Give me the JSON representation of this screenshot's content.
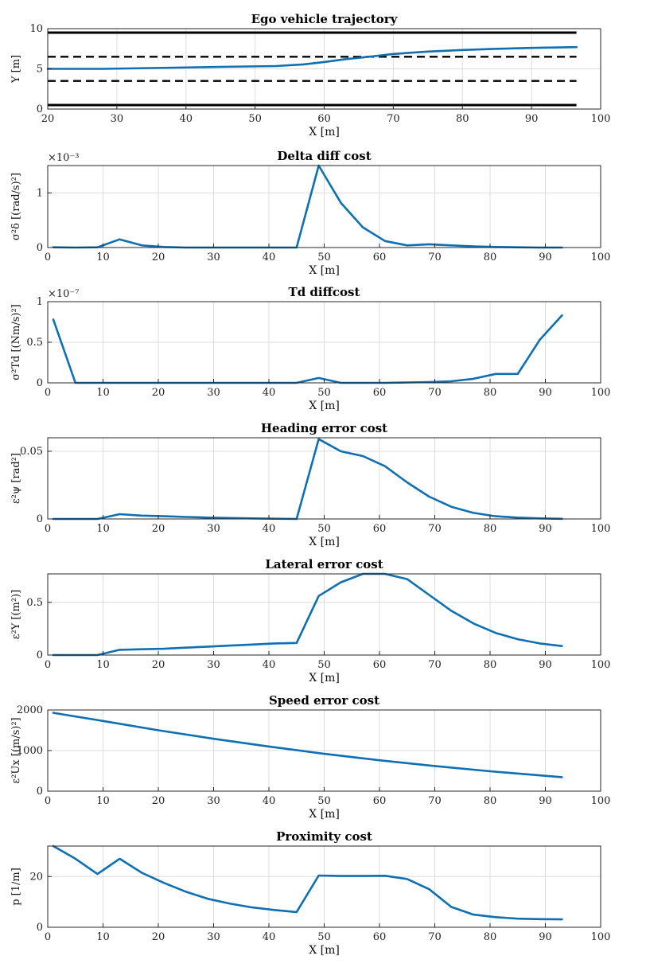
{
  "chart_data": [
    {
      "type": "line",
      "title": "Ego vehicle trajectory",
      "xlabel": "X [m]",
      "ylabel": "Y [m]",
      "xlim": [
        20,
        100
      ],
      "ylim": [
        0,
        10
      ],
      "xticks": [
        20,
        30,
        40,
        50,
        60,
        70,
        80,
        90,
        100
      ],
      "yticks": [
        0,
        5,
        10
      ],
      "ytick_labels": [
        "0",
        "5",
        "10"
      ],
      "grid": true,
      "exponent": "",
      "lane_lines": [
        {
          "style": "solid",
          "y": 9.5
        },
        {
          "style": "dashed",
          "y": 6.5
        },
        {
          "style": "dashed",
          "y": 3.5
        },
        {
          "style": "solid",
          "y": 0.5
        }
      ],
      "lane_x_range": [
        20,
        96.5
      ],
      "series": [
        {
          "name": "trajectory",
          "x": [
            20,
            28,
            35,
            45,
            53,
            57,
            60,
            63,
            67,
            70,
            75,
            80,
            85,
            90,
            96.5
          ],
          "y": [
            5.0,
            5.0,
            5.1,
            5.25,
            5.35,
            5.55,
            5.85,
            6.2,
            6.55,
            6.85,
            7.15,
            7.35,
            7.5,
            7.6,
            7.7
          ]
        }
      ]
    },
    {
      "type": "line",
      "title": "Delta diff cost",
      "xlabel": "X [m]",
      "ylabel": "σ²δ [(rad/s)²]",
      "xlim": [
        0,
        100
      ],
      "ylim": [
        0,
        1.5
      ],
      "xticks": [
        0,
        10,
        20,
        30,
        40,
        50,
        60,
        70,
        80,
        90,
        100
      ],
      "yticks": [
        0,
        1
      ],
      "ytick_labels": [
        "0",
        "1"
      ],
      "grid": true,
      "exponent": "×10⁻³",
      "series": [
        {
          "name": "delta diff cost",
          "x": [
            1,
            5,
            9,
            13,
            17,
            21,
            25,
            29,
            33,
            37,
            41,
            45,
            49,
            53,
            57,
            61,
            65,
            69,
            73,
            77,
            81,
            85,
            89,
            93
          ],
          "y": [
            0.005,
            0.0,
            0.005,
            0.15,
            0.04,
            0.01,
            0.0,
            0.0,
            0.0,
            0.0,
            0.0,
            0.0,
            1.5,
            0.82,
            0.37,
            0.12,
            0.04,
            0.06,
            0.04,
            0.02,
            0.01,
            0.005,
            0.0,
            0.0
          ]
        }
      ]
    },
    {
      "type": "line",
      "title": "Td diffcost",
      "xlabel": "X [m]",
      "ylabel": "σ²Td [(Nm/s)²]",
      "xlim": [
        0,
        100
      ],
      "ylim": [
        0,
        1
      ],
      "xticks": [
        0,
        10,
        20,
        30,
        40,
        50,
        60,
        70,
        80,
        90,
        100
      ],
      "yticks": [
        0,
        0.5,
        1
      ],
      "ytick_labels": [
        "0",
        "0.5",
        "1"
      ],
      "grid": true,
      "exponent": "×10⁻⁷",
      "series": [
        {
          "name": "td diff cost",
          "x": [
            1,
            5,
            9,
            13,
            17,
            21,
            25,
            29,
            33,
            37,
            41,
            45,
            49,
            53,
            57,
            61,
            65,
            69,
            73,
            77,
            81,
            85,
            89,
            93
          ],
          "y": [
            0.78,
            0.0,
            0.0,
            0.0,
            0.0,
            0.0,
            0.0,
            0.0,
            0.0,
            0.0,
            0.0,
            0.0,
            0.06,
            0.0,
            0.0,
            0.0,
            0.005,
            0.01,
            0.02,
            0.05,
            0.11,
            0.11,
            0.53,
            0.83
          ]
        }
      ]
    },
    {
      "type": "line",
      "title": "Heading error cost",
      "xlabel": "X [m]",
      "ylabel": "ε²ψ [rad²]",
      "xlim": [
        0,
        100
      ],
      "ylim": [
        0,
        0.06
      ],
      "xticks": [
        0,
        10,
        20,
        30,
        40,
        50,
        60,
        70,
        80,
        90,
        100
      ],
      "yticks": [
        0,
        0.05
      ],
      "ytick_labels": [
        "0",
        "0.05"
      ],
      "grid": true,
      "exponent": "",
      "series": [
        {
          "name": "heading error cost",
          "x": [
            1,
            5,
            9,
            13,
            17,
            21,
            25,
            29,
            33,
            37,
            41,
            45,
            49,
            53,
            57,
            61,
            65,
            69,
            73,
            77,
            81,
            85,
            89,
            93
          ],
          "y": [
            0.0,
            0.0,
            0.0,
            0.0035,
            0.0025,
            0.002,
            0.0015,
            0.001,
            0.0007,
            0.0004,
            0.0002,
            0.0,
            0.059,
            0.05,
            0.0465,
            0.039,
            0.027,
            0.0165,
            0.009,
            0.0045,
            0.002,
            0.001,
            0.0004,
            0.0001
          ]
        }
      ]
    },
    {
      "type": "line",
      "title": "Lateral error cost",
      "xlabel": "X [m]",
      "ylabel": "ε²Y [(m²)]",
      "xlim": [
        0,
        100
      ],
      "ylim": [
        0,
        0.77
      ],
      "xticks": [
        0,
        10,
        20,
        30,
        40,
        50,
        60,
        70,
        80,
        90,
        100
      ],
      "yticks": [
        0,
        0.5
      ],
      "ytick_labels": [
        "0",
        "0.5"
      ],
      "grid": true,
      "exponent": "",
      "series": [
        {
          "name": "lateral error cost",
          "x": [
            1,
            5,
            9,
            13,
            17,
            21,
            25,
            29,
            33,
            37,
            41,
            45,
            49,
            53,
            57,
            61,
            65,
            69,
            73,
            77,
            81,
            85,
            89,
            93
          ],
          "y": [
            0.0,
            0.0,
            0.0,
            0.05,
            0.055,
            0.06,
            0.07,
            0.08,
            0.09,
            0.1,
            0.11,
            0.115,
            0.56,
            0.69,
            0.77,
            0.77,
            0.72,
            0.57,
            0.42,
            0.3,
            0.21,
            0.15,
            0.11,
            0.085
          ]
        }
      ]
    },
    {
      "type": "line",
      "title": "Speed error cost",
      "xlabel": "X [m]",
      "ylabel": "ε²Ux [(m/s)²]",
      "xlim": [
        0,
        100
      ],
      "ylim": [
        0,
        2000
      ],
      "xticks": [
        0,
        10,
        20,
        30,
        40,
        50,
        60,
        70,
        80,
        90,
        100
      ],
      "yticks": [
        0,
        1000,
        2000
      ],
      "ytick_labels": [
        "0",
        "1000",
        "2000"
      ],
      "grid": true,
      "exponent": "",
      "series": [
        {
          "name": "speed error cost",
          "x": [
            1,
            10,
            20,
            30,
            40,
            50,
            60,
            70,
            80,
            93
          ],
          "y": [
            1930,
            1730,
            1500,
            1290,
            1100,
            920,
            760,
            620,
            490,
            345
          ]
        }
      ]
    },
    {
      "type": "line",
      "title": "Proximity cost",
      "xlabel": "X [m]",
      "ylabel": "p [1/m]",
      "xlim": [
        0,
        100
      ],
      "ylim": [
        0,
        32
      ],
      "xticks": [
        0,
        10,
        20,
        30,
        40,
        50,
        60,
        70,
        80,
        90,
        100
      ],
      "yticks": [
        0,
        20
      ],
      "ytick_labels": [
        "0",
        "20"
      ],
      "grid": true,
      "exponent": "",
      "series": [
        {
          "name": "proximity cost",
          "x": [
            1,
            5,
            9,
            13,
            17,
            21,
            25,
            29,
            33,
            37,
            41,
            45,
            49,
            53,
            57,
            61,
            65,
            69,
            73,
            77,
            81,
            85,
            89,
            93
          ],
          "y": [
            32,
            27,
            21,
            27,
            21.5,
            17.5,
            14,
            11.2,
            9.3,
            7.8,
            6.8,
            6.0,
            20.4,
            20.2,
            20.2,
            20.3,
            19.0,
            15.0,
            8.0,
            5.0,
            4.0,
            3.4,
            3.2,
            3.1
          ]
        }
      ]
    }
  ]
}
